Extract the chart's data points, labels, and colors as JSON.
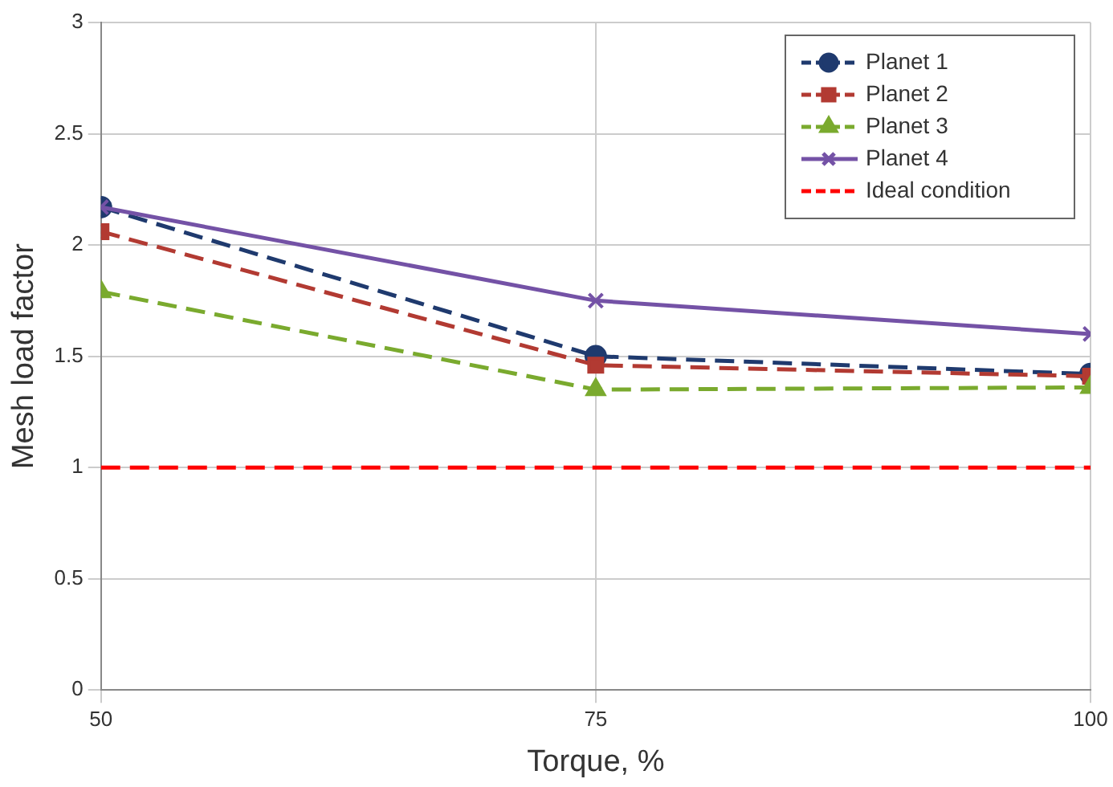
{
  "chart_data": {
    "type": "line",
    "xlabel": "Torque, %",
    "ylabel": "Mesh load factor",
    "x": [
      50,
      75,
      100
    ],
    "xlim": [
      50,
      100
    ],
    "xticks": [
      50,
      75,
      100
    ],
    "ylim": [
      0,
      3
    ],
    "yticks": [
      0,
      0.5,
      1,
      1.5,
      2,
      2.5,
      3
    ],
    "grid": true,
    "legend": "top right",
    "series": [
      {
        "name": "Planet 1",
        "color": "#1f3a6e",
        "values": [
          2.17,
          1.5,
          1.42
        ],
        "marker": "circle",
        "line_style": "dashed"
      },
      {
        "name": "Planet 2",
        "color": "#b23a32",
        "values": [
          2.06,
          1.46,
          1.41
        ],
        "marker": "square",
        "line_style": "dashed"
      },
      {
        "name": "Planet 3",
        "color": "#7aaa2e",
        "values": [
          1.79,
          1.35,
          1.36
        ],
        "marker": "triangle",
        "line_style": "dashed"
      },
      {
        "name": "Planet 4",
        "color": "#7452a6",
        "values": [
          2.17,
          1.75,
          1.6
        ],
        "marker": "cross",
        "line_style": "solid"
      },
      {
        "name": "Ideal condition",
        "color": "#ff0000",
        "values": [
          1,
          1,
          1
        ],
        "marker": "none",
        "line_style": "dashed"
      }
    ]
  }
}
